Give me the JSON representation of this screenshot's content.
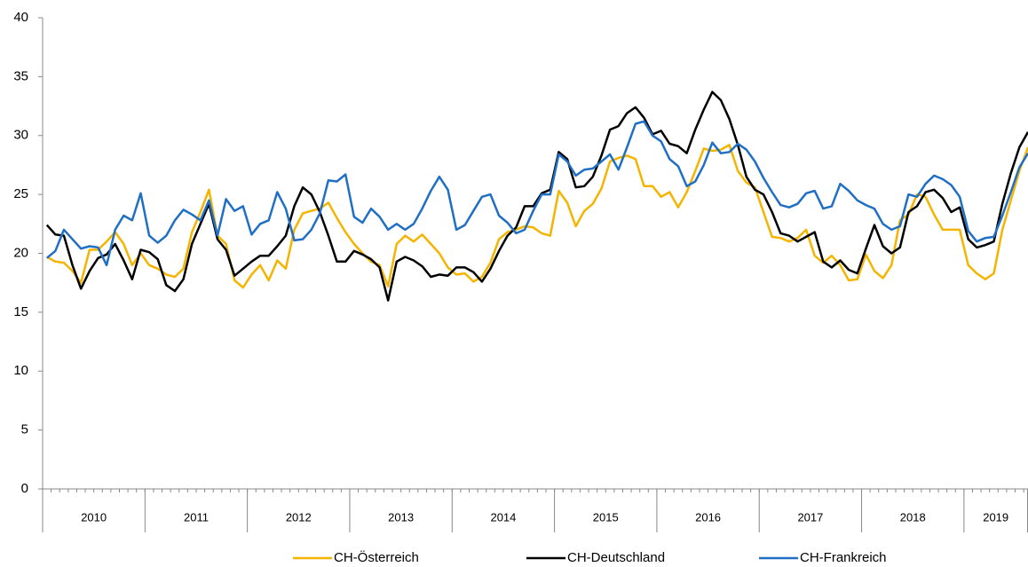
{
  "chart_data": {
    "type": "line",
    "groups": [
      {
        "label": "2010",
        "count": 12
      },
      {
        "label": "2011",
        "count": 12
      },
      {
        "label": "2012",
        "count": 12
      },
      {
        "label": "2013",
        "count": 12
      },
      {
        "label": "2014",
        "count": 12
      },
      {
        "label": "2015",
        "count": 12
      },
      {
        "label": "2016",
        "count": 12
      },
      {
        "label": "2017",
        "count": 12
      },
      {
        "label": "2018",
        "count": 12
      },
      {
        "label": "2019",
        "count": 8
      }
    ],
    "ylim": [
      0,
      40
    ],
    "yticks": [
      0,
      5,
      10,
      15,
      20,
      25,
      30,
      35,
      40
    ],
    "grid": false,
    "legend": "bottom",
    "series": [
      {
        "name": "CH-Österreich",
        "color": "#f5b400",
        "values": [
          19.7,
          19.3,
          19.2,
          18.5,
          17.5,
          20.3,
          20.3,
          21.0,
          21.8,
          20.8,
          19.0,
          20.0,
          19.0,
          18.7,
          18.2,
          18.0,
          18.7,
          21.8,
          23.5,
          25.4,
          21.5,
          20.8,
          17.7,
          17.1,
          18.2,
          19.0,
          17.7,
          19.4,
          18.7,
          22.0,
          23.4,
          23.6,
          23.8,
          24.3,
          23.0,
          21.8,
          20.8,
          20.0,
          19.3,
          19.0,
          17.2,
          20.8,
          21.5,
          21.0,
          21.6,
          20.8,
          20.0,
          18.8,
          18.2,
          18.3,
          17.6,
          18.0,
          19.2,
          21.2,
          21.8,
          22.0,
          22.3,
          22.2,
          21.7,
          21.5,
          25.3,
          24.3,
          22.3,
          23.6,
          24.2,
          25.5,
          27.8,
          28.1,
          28.3,
          28.0,
          25.7,
          25.7,
          24.8,
          25.2,
          23.9,
          25.2,
          27.0,
          28.9,
          28.7,
          28.8,
          29.2,
          27.0,
          26.0,
          25.6,
          23.5,
          21.4,
          21.3,
          21.0,
          21.3,
          22.0,
          19.8,
          19.2,
          19.8,
          19.0,
          17.7,
          17.8,
          19.9,
          18.5,
          17.9,
          19.0,
          22.8,
          23.3,
          25.0,
          24.8,
          23.3,
          22.0,
          22.0,
          22.0,
          19.0,
          18.3,
          17.8,
          18.3,
          22.0,
          24.5,
          27.0,
          29.0
        ]
      },
      {
        "name": "CH-Deutschland",
        "color": "#000000",
        "values": [
          22.4,
          21.6,
          21.5,
          19.0,
          17.0,
          18.5,
          19.6,
          19.9,
          20.8,
          19.4,
          17.8,
          20.3,
          20.1,
          19.5,
          17.3,
          16.8,
          17.8,
          20.8,
          22.5,
          24.2,
          21.2,
          20.3,
          18.1,
          18.7,
          19.3,
          19.8,
          19.8,
          20.6,
          21.5,
          24.0,
          25.6,
          25.0,
          23.5,
          21.5,
          19.3,
          19.3,
          20.2,
          19.9,
          19.5,
          18.8,
          16.0,
          19.3,
          19.7,
          19.4,
          18.9,
          18.0,
          18.2,
          18.1,
          18.8,
          18.8,
          18.4,
          17.6,
          18.7,
          20.2,
          21.5,
          22.2,
          24.0,
          24.0,
          25.1,
          25.4,
          28.6,
          28.0,
          25.6,
          25.7,
          26.5,
          28.3,
          30.5,
          30.8,
          31.9,
          32.4,
          31.5,
          30.1,
          30.4,
          29.3,
          29.1,
          28.5,
          30.5,
          32.2,
          33.7,
          33.0,
          31.4,
          29.2,
          26.5,
          25.4,
          25.0,
          23.5,
          21.7,
          21.5,
          21.0,
          21.4,
          21.8,
          19.3,
          18.8,
          19.4,
          18.6,
          18.3,
          20.4,
          22.4,
          20.6,
          20.0,
          20.5,
          23.5,
          24.0,
          25.2,
          25.4,
          24.7,
          23.5,
          23.9,
          21.2,
          20.5,
          20.7,
          21.0,
          24.2,
          26.8,
          29.0,
          30.3
        ]
      },
      {
        "name": "CH-Frankreich",
        "color": "#1f6fc5",
        "values": [
          19.6,
          20.2,
          22.0,
          21.2,
          20.4,
          20.6,
          20.5,
          19.0,
          22.0,
          23.2,
          22.8,
          25.1,
          21.5,
          20.9,
          21.5,
          22.8,
          23.7,
          23.3,
          22.8,
          24.5,
          21.5,
          24.6,
          23.6,
          24.0,
          21.6,
          22.5,
          22.8,
          25.2,
          23.8,
          21.1,
          21.2,
          22.0,
          23.4,
          26.2,
          26.1,
          26.7,
          23.1,
          22.6,
          23.8,
          23.1,
          22.0,
          22.5,
          22.0,
          22.5,
          23.8,
          25.3,
          26.5,
          25.4,
          22.0,
          22.4,
          23.6,
          24.8,
          25.0,
          23.2,
          22.6,
          21.7,
          22.0,
          23.6,
          25.0,
          25.0,
          28.4,
          27.8,
          26.6,
          27.1,
          27.2,
          27.8,
          28.4,
          27.1,
          29.0,
          31.0,
          31.2,
          30.0,
          29.5,
          28.0,
          27.4,
          25.7,
          26.1,
          27.5,
          29.4,
          28.5,
          28.6,
          29.3,
          28.8,
          27.8,
          26.4,
          25.2,
          24.1,
          23.9,
          24.2,
          25.1,
          25.3,
          23.8,
          24.0,
          25.9,
          25.3,
          24.5,
          24.1,
          23.8,
          22.5,
          22.0,
          22.3,
          25.0,
          24.8,
          25.9,
          26.6,
          26.3,
          25.8,
          24.8,
          21.9,
          21.0,
          21.3,
          21.4,
          23.2,
          25.2,
          27.3,
          28.5
        ]
      }
    ]
  }
}
